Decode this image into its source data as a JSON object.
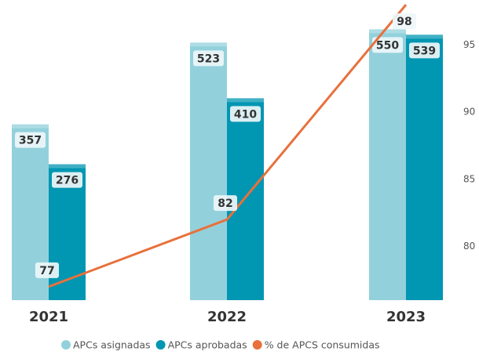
{
  "chart_data": {
    "type": "bar-line",
    "categories": [
      "2021",
      "2022",
      "2023"
    ],
    "series": [
      {
        "name": "APCs asignadas",
        "color": "#92d1dc",
        "values": [
          357,
          523,
          550
        ]
      },
      {
        "name": "APCs aprobadas",
        "color": "#0196b2",
        "values": [
          276,
          410,
          539
        ]
      },
      {
        "name": "% de APCS consumidas",
        "color": "#e8713c",
        "values": [
          77,
          82,
          98
        ],
        "axis": "y2",
        "kind": "line"
      }
    ],
    "ylim": [
      0,
      600
    ],
    "y2lim": [
      76,
      98
    ],
    "y2ticks": [
      80,
      85,
      90,
      95
    ],
    "legend": "bottom"
  }
}
